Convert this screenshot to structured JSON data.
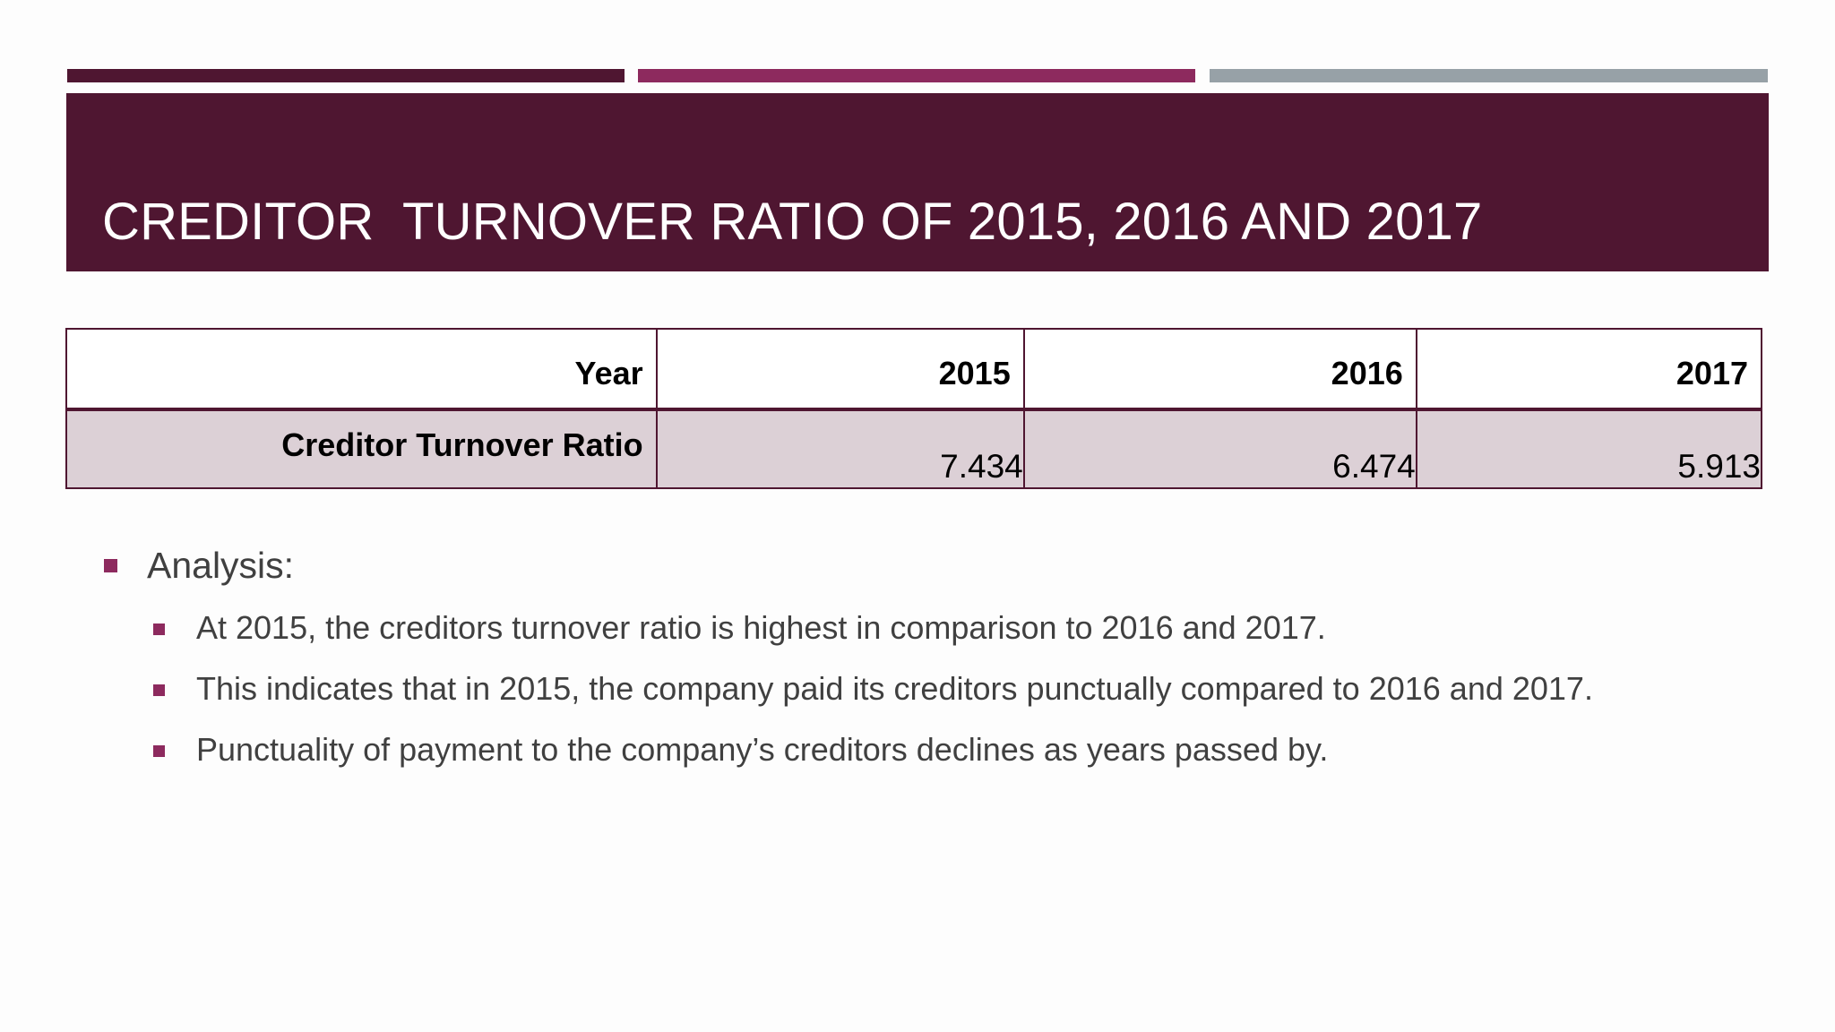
{
  "slide": {
    "title": "CREDITOR  TURNOVER RATIO OF 2015, 2016 AND 2017"
  },
  "table": {
    "header": {
      "label": "Year",
      "years": [
        "2015",
        "2016",
        "2017"
      ]
    },
    "row": {
      "label": "Creditor Turnover Ratio",
      "values": [
        "7.434",
        "6.474",
        "5.913"
      ]
    }
  },
  "analysis": {
    "heading": "Analysis:",
    "points": [
      "At 2015, the creditors turnover ratio is highest in comparison to 2016 and 2017.",
      "This indicates that in 2015, the company paid its creditors punctually compared to 2016 and 2017.",
      "Punctuality of payment to the company’s creditors declines as years passed by."
    ]
  },
  "colors": {
    "title_band": "#4f1631",
    "accent_dark": "#4f1631",
    "accent_magenta": "#8d2a5e",
    "accent_gray": "#97a1a7",
    "table_row_fill": "#dcd0d6",
    "bullet": "#8d2a5e",
    "body_text": "#404040"
  }
}
